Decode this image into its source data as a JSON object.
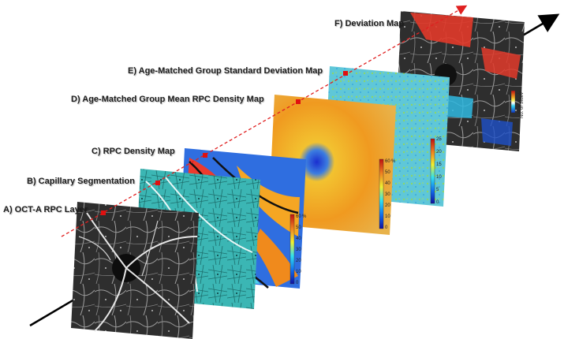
{
  "labels": {
    "a": "A) OCT-A RPC Layer",
    "b": "B) Capillary Segmentation",
    "c": "C) RPC Density Map",
    "d": "D) Age-Matched Group Mean RPC Density Map",
    "e": "E) Age-Matched Group Standard Deviation Map",
    "f": "F) Deviation Map"
  },
  "colorbars": {
    "c": {
      "ticks": [
        "0",
        "10",
        "20",
        "30",
        "40",
        "50",
        "60"
      ],
      "unit": "%"
    },
    "d": {
      "ticks": [
        "0",
        "10",
        "20",
        "30",
        "40",
        "50",
        "60"
      ],
      "unit": "%"
    },
    "e": {
      "ticks": [
        "0",
        "5",
        "10",
        "15",
        "20",
        "25"
      ]
    },
    "f": {
      "ticks": [
        "-3",
        "-2",
        "3",
        "2"
      ],
      "unit": "No. of Stdev"
    }
  },
  "colors": {
    "arrow": "#000000",
    "dashed_line": "#e02020",
    "marker": "#e01010"
  }
}
